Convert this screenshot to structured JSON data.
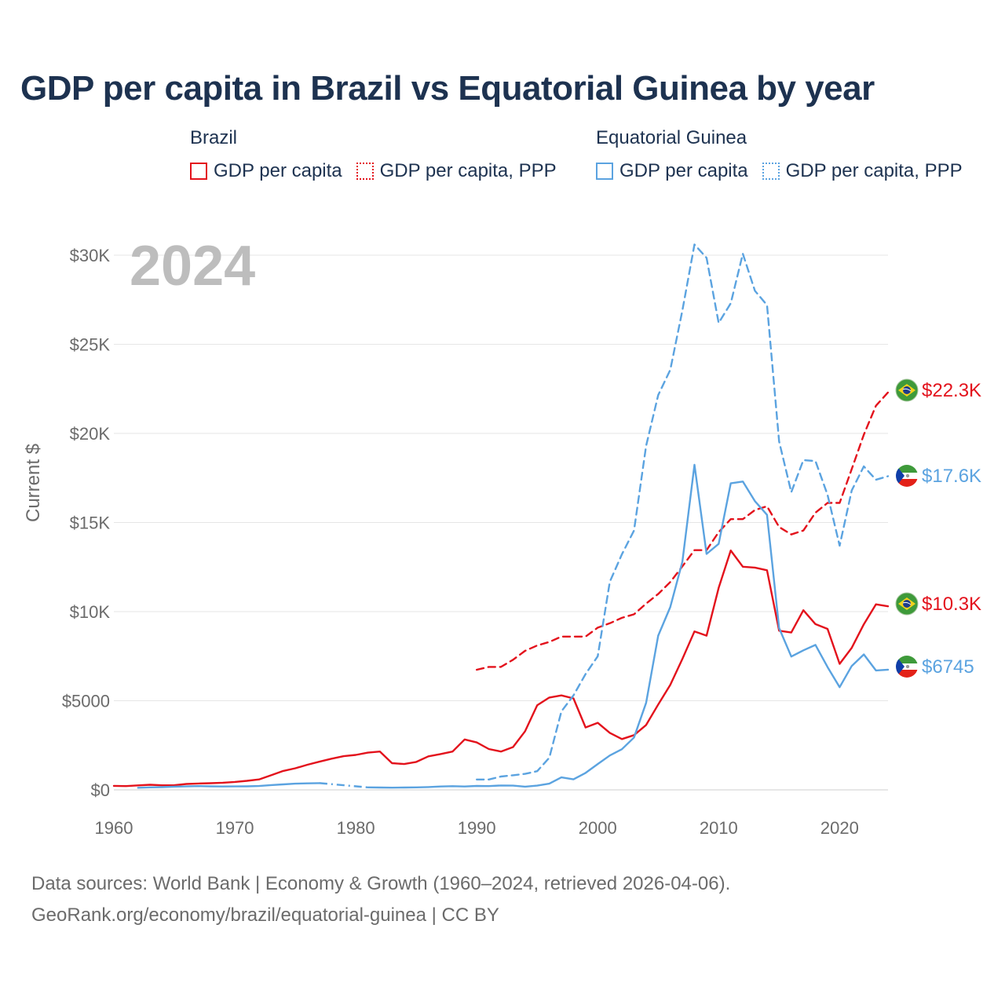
{
  "title": "GDP per capita in Brazil vs Equatorial Guinea by year",
  "legend": {
    "brazil": {
      "group": "Brazil",
      "gdp": "GDP per capita",
      "ppp": "GDP per capita, PPP"
    },
    "eq_guinea": {
      "group": "Equatorial Guinea",
      "gdp": "GDP per capita",
      "ppp": "GDP per capita, PPP"
    }
  },
  "footer": {
    "line1": "Data sources: World Bank | Economy & Growth (1960–2024, retrieved 2026-04-06).",
    "line2": "GeoRank.org/economy/brazil/equatorial-guinea | CC BY"
  },
  "colors": {
    "brazil": "#e3121c",
    "eq_guinea": "#5ba3e0",
    "grid": "#e6e6e6",
    "axis_text": "#6b6b6b",
    "title": "#1d3250"
  },
  "chart_data": {
    "type": "line",
    "title": "GDP per capita in Brazil vs Equatorial Guinea by year",
    "year_label": "2024",
    "ylabel": "Current $",
    "xlabel": "",
    "xlim": [
      1960,
      2024
    ],
    "ylim": [
      0,
      30000
    ],
    "x_ticks": [
      1960,
      1970,
      1980,
      1990,
      2000,
      2010,
      2020
    ],
    "x_tick_labels": [
      "1960",
      "1970",
      "1980",
      "1990",
      "2000",
      "2010",
      "2020"
    ],
    "y_ticks": [
      0,
      5000,
      10000,
      15000,
      20000,
      25000,
      30000
    ],
    "y_tick_labels": [
      "$0",
      "$5000",
      "$10K",
      "$15K",
      "$20K",
      "$25K",
      "$30K"
    ],
    "grid": true,
    "series": [
      {
        "name": "Brazil GDP per capita",
        "country": "brazil",
        "style": "solid",
        "end_label": "$10.3K",
        "points": [
          [
            1960,
            226
          ],
          [
            1961,
            212
          ],
          [
            1962,
            252
          ],
          [
            1963,
            287
          ],
          [
            1964,
            257
          ],
          [
            1965,
            259
          ],
          [
            1966,
            330
          ],
          [
            1967,
            356
          ],
          [
            1968,
            375
          ],
          [
            1969,
            403
          ],
          [
            1970,
            447
          ],
          [
            1971,
            506
          ],
          [
            1972,
            586
          ],
          [
            1973,
            819
          ],
          [
            1974,
            1060
          ],
          [
            1975,
            1210
          ],
          [
            1976,
            1410
          ],
          [
            1977,
            1580
          ],
          [
            1978,
            1750
          ],
          [
            1979,
            1890
          ],
          [
            1980,
            1960
          ],
          [
            1981,
            2090
          ],
          [
            1982,
            2150
          ],
          [
            1983,
            1500
          ],
          [
            1984,
            1450
          ],
          [
            1985,
            1570
          ],
          [
            1986,
            1880
          ],
          [
            1987,
            2010
          ],
          [
            1988,
            2150
          ],
          [
            1989,
            2830
          ],
          [
            1990,
            2660
          ],
          [
            1991,
            2290
          ],
          [
            1992,
            2150
          ],
          [
            1993,
            2400
          ],
          [
            1994,
            3290
          ],
          [
            1995,
            4750
          ],
          [
            1996,
            5180
          ],
          [
            1997,
            5300
          ],
          [
            1998,
            5130
          ],
          [
            1999,
            3500
          ],
          [
            2000,
            3760
          ],
          [
            2001,
            3200
          ],
          [
            2002,
            2850
          ],
          [
            2003,
            3070
          ],
          [
            2004,
            3640
          ],
          [
            2005,
            4790
          ],
          [
            2006,
            5890
          ],
          [
            2007,
            7350
          ],
          [
            2008,
            8890
          ],
          [
            2009,
            8650
          ],
          [
            2010,
            11330
          ],
          [
            2011,
            13430
          ],
          [
            2012,
            12520
          ],
          [
            2013,
            12470
          ],
          [
            2014,
            12320
          ],
          [
            2015,
            8930
          ],
          [
            2016,
            8830
          ],
          [
            2017,
            10080
          ],
          [
            2018,
            9300
          ],
          [
            2019,
            9030
          ],
          [
            2020,
            7070
          ],
          [
            2021,
            7970
          ],
          [
            2022,
            9290
          ],
          [
            2023,
            10410
          ],
          [
            2024,
            10300
          ]
        ]
      },
      {
        "name": "Brazil GDP per capita, PPP",
        "country": "brazil",
        "style": "dashed",
        "end_label": "$22.3K",
        "points": [
          [
            1990,
            6740
          ],
          [
            1991,
            6900
          ],
          [
            1992,
            6900
          ],
          [
            1993,
            7300
          ],
          [
            1994,
            7800
          ],
          [
            1995,
            8100
          ],
          [
            1996,
            8300
          ],
          [
            1997,
            8600
          ],
          [
            1998,
            8600
          ],
          [
            1999,
            8600
          ],
          [
            2000,
            9100
          ],
          [
            2001,
            9350
          ],
          [
            2002,
            9650
          ],
          [
            2003,
            9850
          ],
          [
            2004,
            10450
          ],
          [
            2005,
            10990
          ],
          [
            2006,
            11660
          ],
          [
            2007,
            12540
          ],
          [
            2008,
            13450
          ],
          [
            2009,
            13450
          ],
          [
            2010,
            14460
          ],
          [
            2011,
            15190
          ],
          [
            2012,
            15190
          ],
          [
            2013,
            15700
          ],
          [
            2014,
            15910
          ],
          [
            2015,
            14750
          ],
          [
            2016,
            14330
          ],
          [
            2017,
            14550
          ],
          [
            2018,
            15550
          ],
          [
            2019,
            16100
          ],
          [
            2020,
            16100
          ],
          [
            2021,
            18000
          ],
          [
            2022,
            19930
          ],
          [
            2023,
            21550
          ],
          [
            2024,
            22300
          ]
        ]
      },
      {
        "name": "Equatorial Guinea GDP per capita",
        "country": "eq_guinea",
        "style": "solid",
        "end_label": "$6745",
        "points": [
          [
            1962,
            120
          ],
          [
            1963,
            140
          ],
          [
            1964,
            155
          ],
          [
            1965,
            180
          ],
          [
            1966,
            195
          ],
          [
            1967,
            210
          ],
          [
            1968,
            200
          ],
          [
            1969,
            190
          ],
          [
            1970,
            195
          ],
          [
            1971,
            200
          ],
          [
            1972,
            215
          ],
          [
            1973,
            270
          ],
          [
            1974,
            310
          ],
          [
            1975,
            350
          ],
          [
            1976,
            365
          ],
          [
            1977,
            380
          ],
          [
            1978,
            null
          ],
          [
            1979,
            null
          ],
          [
            1980,
            null
          ],
          [
            1981,
            140
          ],
          [
            1982,
            130
          ],
          [
            1983,
            125
          ],
          [
            1984,
            130
          ],
          [
            1985,
            140
          ],
          [
            1986,
            160
          ],
          [
            1987,
            190
          ],
          [
            1988,
            205
          ],
          [
            1989,
            190
          ],
          [
            1990,
            220
          ],
          [
            1991,
            210
          ],
          [
            1992,
            245
          ],
          [
            1993,
            240
          ],
          [
            1994,
            180
          ],
          [
            1995,
            240
          ],
          [
            1996,
            350
          ],
          [
            1997,
            700
          ],
          [
            1998,
            590
          ],
          [
            1999,
            950
          ],
          [
            2000,
            1450
          ],
          [
            2001,
            1930
          ],
          [
            2002,
            2280
          ],
          [
            2003,
            2940
          ],
          [
            2004,
            4880
          ],
          [
            2005,
            8650
          ],
          [
            2006,
            10260
          ],
          [
            2007,
            12800
          ],
          [
            2008,
            18240
          ],
          [
            2009,
            13240
          ],
          [
            2010,
            13800
          ],
          [
            2011,
            17200
          ],
          [
            2012,
            17300
          ],
          [
            2013,
            16200
          ],
          [
            2014,
            15430
          ],
          [
            2015,
            9080
          ],
          [
            2016,
            7480
          ],
          [
            2017,
            7830
          ],
          [
            2018,
            8130
          ],
          [
            2019,
            6890
          ],
          [
            2020,
            5760
          ],
          [
            2021,
            6950
          ],
          [
            2022,
            7600
          ],
          [
            2023,
            6700
          ],
          [
            2024,
            6745
          ]
        ]
      },
      {
        "name": "Equatorial Guinea GDP per capita, PPP",
        "country": "eq_guinea",
        "style": "dashed",
        "end_label": "$17.6K",
        "points": [
          [
            1990,
            580
          ],
          [
            1991,
            580
          ],
          [
            1992,
            750
          ],
          [
            1993,
            820
          ],
          [
            1994,
            900
          ],
          [
            1995,
            1050
          ],
          [
            1996,
            1800
          ],
          [
            1997,
            4400
          ],
          [
            1998,
            5300
          ],
          [
            1999,
            6500
          ],
          [
            2000,
            7500
          ],
          [
            2001,
            11680
          ],
          [
            2002,
            13220
          ],
          [
            2003,
            14550
          ],
          [
            2004,
            19300
          ],
          [
            2005,
            22150
          ],
          [
            2006,
            23570
          ],
          [
            2007,
            26900
          ],
          [
            2008,
            30600
          ],
          [
            2009,
            29850
          ],
          [
            2010,
            26200
          ],
          [
            2011,
            27300
          ],
          [
            2012,
            30080
          ],
          [
            2013,
            28000
          ],
          [
            2014,
            27200
          ],
          [
            2015,
            19550
          ],
          [
            2016,
            16700
          ],
          [
            2017,
            18500
          ],
          [
            2018,
            18450
          ],
          [
            2019,
            16550
          ],
          [
            2020,
            13700
          ],
          [
            2021,
            16800
          ],
          [
            2022,
            18150
          ],
          [
            2023,
            17400
          ],
          [
            2024,
            17600
          ]
        ]
      }
    ]
  }
}
